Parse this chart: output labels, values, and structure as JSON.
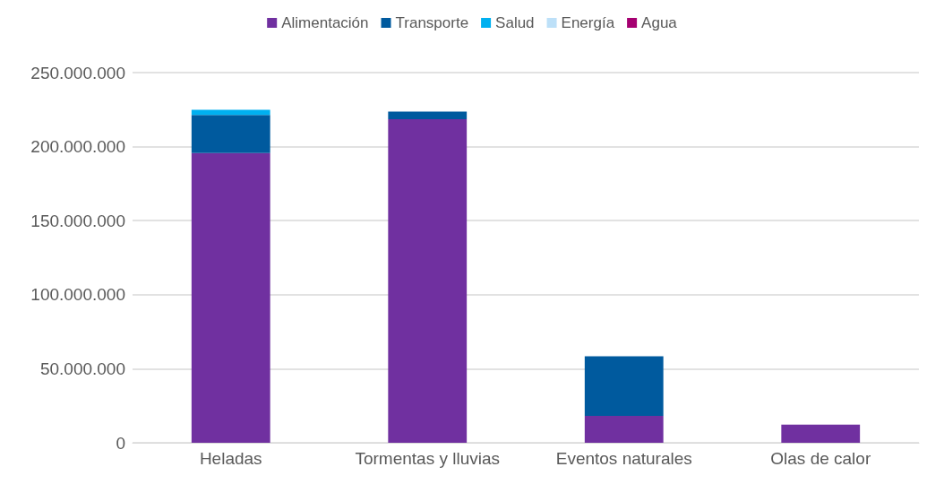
{
  "chart_data": {
    "type": "bar",
    "stacked": true,
    "categories": [
      "Heladas",
      "Tormentas y lluvias",
      "Eventos naturales",
      "Olas de calor"
    ],
    "series": [
      {
        "name": "Alimentación",
        "color": "#7030a0",
        "values": [
          195700000,
          218500000,
          18100000,
          12300000
        ]
      },
      {
        "name": "Transporte",
        "color": "#005a9e",
        "values": [
          25700000,
          5200000,
          40300000,
          0
        ]
      },
      {
        "name": "Salud",
        "color": "#00b0f0",
        "values": [
          3500000,
          0,
          0,
          0
        ]
      },
      {
        "name": "Energía",
        "color": "#bde0f8",
        "values": [
          null,
          0,
          0,
          0
        ]
      },
      {
        "name": "Agua",
        "color": "#a50071",
        "values": [
          null,
          0,
          0,
          0
        ]
      }
    ],
    "ylim": [
      0,
      250000000
    ],
    "yticks": [
      {
        "value": 0,
        "label": "0"
      },
      {
        "value": 50000000,
        "label": "50.000.000"
      },
      {
        "value": 100000000,
        "label": "100.000.000"
      },
      {
        "value": 150000000,
        "label": "150.000.000"
      },
      {
        "value": 200000000,
        "label": "200.000.000"
      },
      {
        "value": 250000000,
        "label": "250.000.000"
      }
    ],
    "grid": "y",
    "legend": "top"
  }
}
